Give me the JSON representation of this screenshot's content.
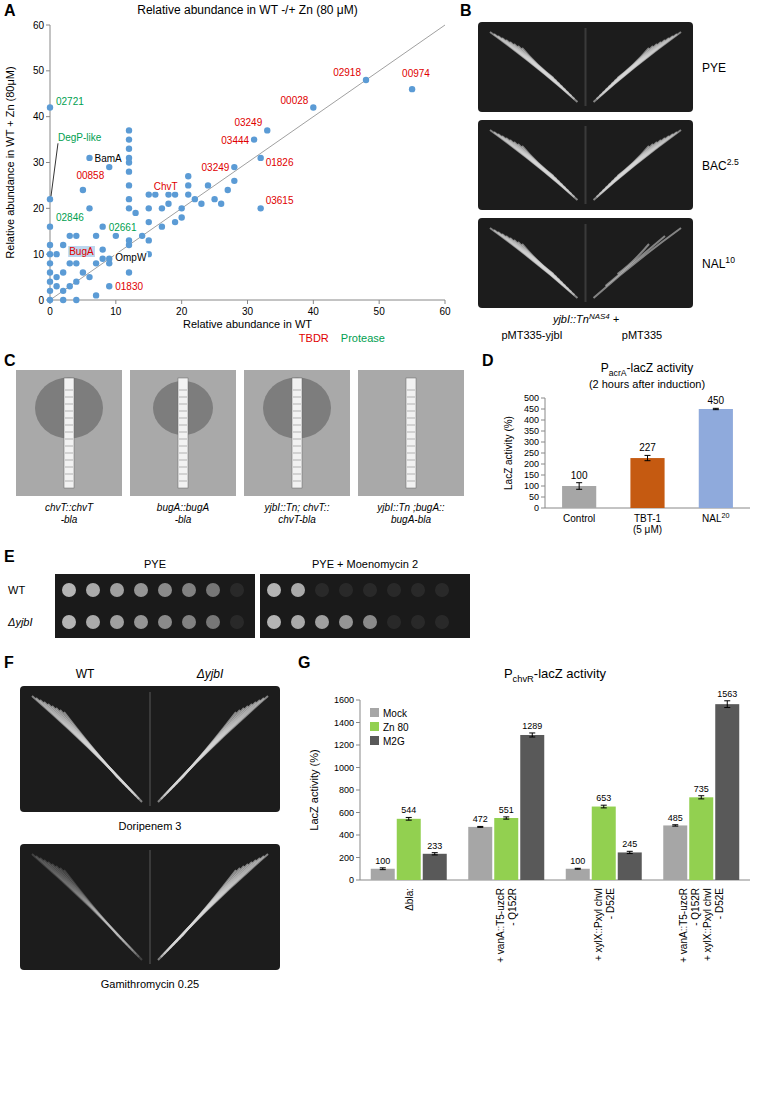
{
  "chart_data": [
    {
      "panel": "A",
      "type": "scatter",
      "title": "Relative abundance in WT -/+ Zn (80 μM)",
      "x_label": "Relative abundance in WT",
      "y_label": "Relative abundance in WT + Zn (80μM)",
      "xlim": [
        0,
        60
      ],
      "ylim": [
        0,
        60
      ],
      "xticks": [
        0,
        10,
        20,
        30,
        40,
        50,
        60
      ],
      "yticks": [
        0,
        10,
        20,
        30,
        40,
        50,
        60
      ],
      "grid": false,
      "series": [
        {
          "color": "#5b9bd5",
          "marker": "circle",
          "x": [
            0,
            0,
            6,
            9,
            0,
            8,
            2,
            9,
            9,
            15,
            32,
            32,
            28,
            31,
            33,
            40,
            48,
            55,
            12,
            12,
            12,
            12,
            12,
            12,
            12,
            12,
            12,
            13,
            15,
            12,
            10,
            7,
            8,
            6,
            5,
            4,
            3,
            1,
            0,
            0,
            0,
            0,
            0,
            0,
            0,
            1,
            2,
            3,
            4,
            5,
            6,
            2,
            3,
            4,
            1,
            7,
            8,
            9,
            15,
            12,
            15,
            14,
            12,
            15,
            16,
            17,
            18,
            19,
            18,
            21,
            21,
            20,
            22,
            23,
            24,
            25,
            26,
            27,
            28,
            21,
            17,
            19,
            20,
            2,
            4,
            7
          ],
          "values": [
            42,
            22,
            31,
            29,
            16,
            16,
            12,
            8,
            3,
            23,
            20,
            31,
            29,
            35,
            37,
            42,
            48,
            46,
            37,
            35,
            33,
            31,
            30,
            28,
            25,
            22,
            20,
            19,
            17,
            12,
            14,
            14,
            11,
            20,
            24,
            14,
            14,
            10,
            12,
            10,
            8,
            6,
            4,
            2,
            0,
            5,
            6,
            8,
            8,
            6,
            5,
            2,
            3,
            4,
            3,
            8,
            9,
            9,
            10,
            6,
            13,
            14,
            13,
            20,
            23,
            20,
            23,
            23,
            21,
            27,
            25,
            20,
            22,
            21,
            25,
            22,
            21,
            24,
            26,
            23,
            16,
            17,
            18,
            0,
            0,
            1
          ]
        }
      ],
      "annotations": [
        {
          "text": "02721",
          "x": 0,
          "y": 42,
          "color": "#00a050"
        },
        {
          "text": "DegP-like",
          "x": 0,
          "y": 22,
          "color": "#00a050"
        },
        {
          "text": "BamA",
          "x": 6,
          "y": 31,
          "color": "#000000"
        },
        {
          "text": "00858",
          "x": 9,
          "y": 29,
          "color": "#e00000"
        },
        {
          "text": "02846",
          "x": 0,
          "y": 16,
          "color": "#00a050"
        },
        {
          "text": "02661",
          "x": 8,
          "y": 16,
          "color": "#00a050"
        },
        {
          "text": "BugA",
          "x": 2,
          "y": 12,
          "color": "#e00000"
        },
        {
          "text": "OmpW",
          "x": 9,
          "y": 8,
          "color": "#000000"
        },
        {
          "text": "01830",
          "x": 9,
          "y": 3,
          "color": "#e00000"
        },
        {
          "text": "ChvT",
          "x": 15,
          "y": 23,
          "color": "#e00000"
        },
        {
          "text": "03615",
          "x": 32,
          "y": 20,
          "color": "#e00000"
        },
        {
          "text": "01826",
          "x": 32,
          "y": 31,
          "color": "#e00000"
        },
        {
          "text": "03249",
          "x": 28,
          "y": 29,
          "color": "#e00000"
        },
        {
          "text": "03444",
          "x": 31,
          "y": 35,
          "color": "#e00000"
        },
        {
          "text": "03249",
          "x": 33,
          "y": 37,
          "color": "#e00000"
        },
        {
          "text": "00028",
          "x": 40,
          "y": 42,
          "color": "#e00000"
        },
        {
          "text": "02918",
          "x": 48,
          "y": 48,
          "color": "#e00000"
        },
        {
          "text": "00974",
          "x": 55,
          "y": 46,
          "color": "#e00000"
        }
      ],
      "key_labels": [
        {
          "text": "TBDR",
          "color": "#e00000"
        },
        {
          "text": "Protease",
          "color": "#00a050"
        }
      ]
    },
    {
      "panel": "D",
      "type": "bar",
      "title": [
        {
          "text": "P"
        },
        {
          "text": "acrA",
          "sub": true
        },
        {
          "text": "-lacZ  activity"
        }
      ],
      "subtitle": "(2 hours after induction)",
      "y_label": "LacZ activity (%)",
      "categories": [
        "Control",
        "TBT-1\n(5 μM)",
        [
          {
            "text": "NAL"
          },
          {
            "text": "20",
            "sup": true
          }
        ]
      ],
      "values": [
        100,
        227,
        450
      ],
      "errors": [
        15,
        12,
        3
      ],
      "colors": [
        "#a6a6a6",
        "#c55a11",
        "#8faadc"
      ],
      "ylim": [
        0,
        500
      ],
      "yticks": [
        0,
        50,
        100,
        150,
        200,
        250,
        300,
        350,
        400,
        450,
        500
      ],
      "grid": false,
      "data_labels": true
    },
    {
      "panel": "G",
      "type": "bar",
      "title": [
        {
          "text": "P"
        },
        {
          "text": "chvR",
          "sub": true
        },
        {
          "text": "-lacZ  activity"
        }
      ],
      "y_label": "LacZ activity (%)",
      "categories": [
        "Δbla:",
        "+ vanA::T5-uzcR\n- Q152R",
        "+ xylX::Pxyl chvI\n- D52E",
        "+ vanA::T5-uzcR\n- Q152R\n+ xylX::Pxyl chvI\n- D52E"
      ],
      "series": [
        {
          "name": "Mock",
          "color": "#a6a6a6",
          "values": [
            100,
            472,
            100,
            485
          ],
          "errors": [
            8,
            4,
            4,
            6
          ]
        },
        {
          "name": "Zn 80",
          "color": "#92d050",
          "values": [
            544,
            551,
            653,
            735
          ],
          "errors": [
            12,
            10,
            12,
            14
          ]
        },
        {
          "name": "M2G",
          "color": "#595959",
          "values": [
            233,
            1289,
            245,
            1563
          ],
          "errors": [
            10,
            18,
            10,
            30
          ]
        }
      ],
      "ylim": [
        0,
        1600
      ],
      "yticks": [
        0,
        200,
        400,
        600,
        800,
        1000,
        1200,
        1400,
        1600
      ],
      "grid": false,
      "legend": "top-left",
      "data_labels": true
    }
  ],
  "photos": {
    "B": {
      "panel": "B",
      "rows": [
        "PYE",
        [
          {
            "text": "BAC"
          },
          {
            "text": "2.5",
            "sup": true
          }
        ],
        [
          {
            "text": "NAL"
          },
          {
            "text": "10",
            "sup": true
          }
        ]
      ],
      "strain": [
        {
          "text": "yjbI::Tn"
        },
        {
          "text": "NAS4",
          "sup": true
        },
        {
          "text": "  +"
        }
      ],
      "columns": [
        "pMT335-yjbI",
        "pMT335"
      ]
    },
    "C": {
      "panel": "C",
      "captions": [
        "chvT::chvT\n-bla",
        "bugA::bugA\n-bla",
        "yjbI::Tn; chvT::\nchvT-bla",
        "yjbI::Tn ;bugA::\nbugA-bla"
      ]
    },
    "E": {
      "panel": "E",
      "columns": [
        "PYE",
        "PYE + Moenomycin 2"
      ],
      "rows": [
        "WT",
        "ΔyjbI"
      ]
    },
    "F": {
      "panel": "F",
      "columns": [
        "WT",
        "ΔyjbI"
      ],
      "rows": [
        "Doripenem 3",
        "Gamithromycin  0.25"
      ]
    }
  }
}
